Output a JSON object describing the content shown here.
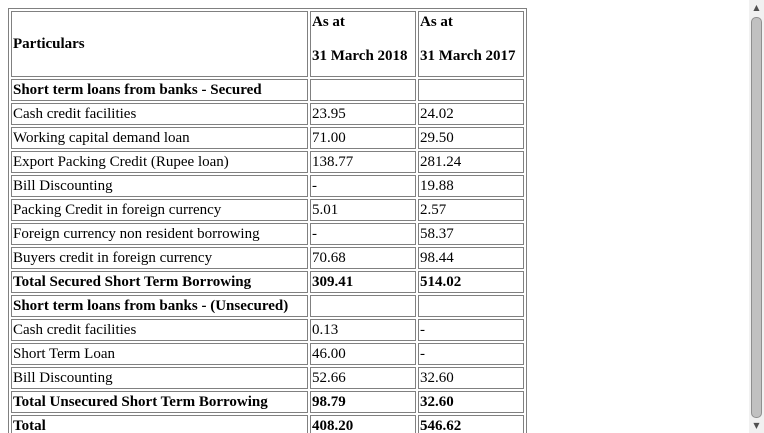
{
  "table": {
    "header": {
      "particulars": "Particulars",
      "col2_line1": "As at",
      "col2_line2": "31 March 2018",
      "col3_line1": "As at",
      "col3_line2": "31 March 2017"
    },
    "rows": [
      {
        "label": "Short term loans from banks - Secured",
        "v2018": "",
        "v2017": "",
        "bold": true
      },
      {
        "label": "Cash credit facilities",
        "v2018": "23.95",
        "v2017": "24.02",
        "bold": false
      },
      {
        "label": "Working capital demand loan",
        "v2018": "71.00",
        "v2017": "29.50",
        "bold": false
      },
      {
        "label": "Export Packing Credit (Rupee loan)",
        "v2018": "138.77",
        "v2017": "281.24",
        "bold": false
      },
      {
        "label": "Bill Discounting",
        "v2018": "-",
        "v2017": "19.88",
        "bold": false
      },
      {
        "label": "Packing Credit in foreign currency",
        "v2018": "5.01",
        "v2017": "2.57",
        "bold": false
      },
      {
        "label": "Foreign currency non resident borrowing",
        "v2018": "-",
        "v2017": "58.37",
        "bold": false
      },
      {
        "label": "Buyers credit in foreign currency",
        "v2018": "70.68",
        "v2017": "98.44",
        "bold": false
      },
      {
        "label": "Total Secured Short Term Borrowing",
        "v2018": "309.41",
        "v2017": "514.02",
        "bold": true
      },
      {
        "label": "Short term loans from banks - (Unsecured)",
        "v2018": "",
        "v2017": "",
        "bold": true
      },
      {
        "label": "Cash credit facilities",
        "v2018": "0.13",
        "v2017": "-",
        "bold": false
      },
      {
        "label": "Short Term Loan",
        "v2018": "46.00",
        "v2017": "-",
        "bold": false
      },
      {
        "label": "Bill Discounting",
        "v2018": "52.66",
        "v2017": "32.60",
        "bold": false
      },
      {
        "label": "Total Unsecured Short Term Borrowing",
        "v2018": "98.79",
        "v2017": "32.60",
        "bold": true
      },
      {
        "label": "Total",
        "v2018": "408.20",
        "v2017": "546.62",
        "bold": true
      }
    ]
  },
  "scrollbar": {
    "up_icon": "triangle-up-icon",
    "down_icon": "triangle-down-icon"
  }
}
